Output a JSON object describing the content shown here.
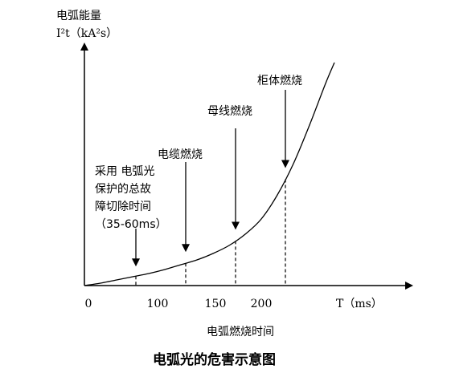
{
  "chart_data": {
    "type": "line",
    "ylabel_line1": "电弧能量",
    "ylabel_line2": "I²t（kA²s）",
    "xlabel": "T（ms）",
    "axis_caption": "电弧燃烧时间",
    "figure_caption": "电弧光的危害示意图",
    "x_ticks": [
      {
        "value": 0,
        "label": "0"
      },
      {
        "value": 100,
        "label": "100"
      },
      {
        "value": 150,
        "label": "150"
      },
      {
        "value": 200,
        "label": "200"
      }
    ],
    "xlim": [
      0,
      311
    ],
    "ylim": [
      0,
      290
    ],
    "curve": {
      "x": [
        0,
        20,
        40,
        60,
        80,
        100,
        120,
        140,
        160,
        180,
        200,
        220,
        240,
        260,
        280,
        300,
        311
      ],
      "y": [
        0,
        3,
        7,
        11,
        15,
        20,
        26,
        32,
        40,
        50,
        64,
        83,
        113,
        152,
        200,
        252,
        278
      ]
    },
    "events": [
      {
        "id": "protection",
        "x": 64,
        "label_lines": [
          "采用 电弧光",
          "保护的总故",
          "障切除时间",
          "（35-60ms）"
        ]
      },
      {
        "id": "cable",
        "x": 126,
        "label_lines": [
          "电缆燃烧"
        ]
      },
      {
        "id": "busbar",
        "x": 188,
        "label_lines": [
          "母线燃烧"
        ]
      },
      {
        "id": "cabinet",
        "x": 250,
        "label_lines": [
          "柜体燃烧"
        ]
      }
    ]
  }
}
